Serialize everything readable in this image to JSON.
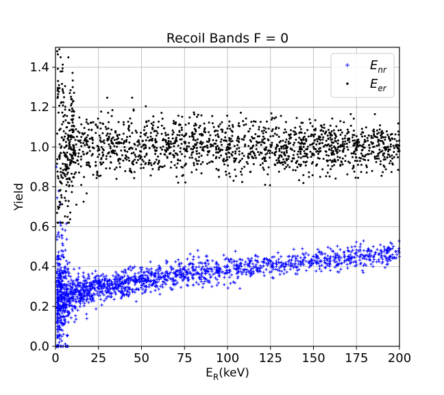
{
  "chart_data": {
    "type": "scatter",
    "title": "Recoil Bands F = 0",
    "xlabel": {
      "main": "E",
      "sub": "R",
      "rest": "(keV)"
    },
    "ylabel": "Yield",
    "xlim": [
      0,
      200
    ],
    "ylim": [
      0.0,
      1.5
    ],
    "xticks": [
      0,
      25,
      50,
      75,
      100,
      125,
      150,
      175,
      200
    ],
    "yticks": [
      0.0,
      0.2,
      0.4,
      0.6,
      0.8,
      1.0,
      1.2,
      1.4
    ],
    "ytick_labels": [
      "0.0",
      "0.2",
      "0.4",
      "0.6",
      "0.8",
      "1.0",
      "1.2",
      "1.4"
    ],
    "grid": true,
    "legend_position": "top-right",
    "series": [
      {
        "name": {
          "main": "E",
          "sub": "nr"
        },
        "color": "#0000ff",
        "marker": "plus",
        "model": "nuclear-recoil band: mean rises from ~0.22 near 1 keV to ~0.46 at 200 keV; wide spread (0.0–0.9) below 10 keV",
        "points": [
          [
            0.5,
            0.9
          ],
          [
            0.8,
            0.55
          ],
          [
            1.0,
            0.12
          ],
          [
            1.2,
            0.45
          ],
          [
            1.5,
            0.05
          ],
          [
            1.8,
            0.78
          ],
          [
            2.0,
            0.3
          ],
          [
            2.2,
            0.02
          ],
          [
            2.5,
            0.62
          ],
          [
            3.0,
            0.2
          ],
          [
            3.5,
            0.48
          ],
          [
            4.0,
            0.08
          ],
          [
            5.0,
            0.38
          ],
          [
            6.0,
            0.15
          ],
          [
            8.0,
            0.42
          ],
          [
            10,
            0.27
          ],
          [
            12,
            0.33
          ],
          [
            15,
            0.24
          ],
          [
            20,
            0.3
          ],
          [
            25,
            0.29
          ],
          [
            30,
            0.31
          ],
          [
            40,
            0.33
          ],
          [
            50,
            0.34
          ],
          [
            60,
            0.35
          ],
          [
            70,
            0.36
          ],
          [
            80,
            0.38
          ],
          [
            90,
            0.39
          ],
          [
            100,
            0.4
          ],
          [
            110,
            0.41
          ],
          [
            125,
            0.43
          ],
          [
            140,
            0.44
          ],
          [
            150,
            0.45
          ],
          [
            160,
            0.45
          ],
          [
            170,
            0.48
          ],
          [
            185,
            0.45
          ],
          [
            196,
            0.46
          ],
          [
            200,
            0.45
          ]
        ]
      },
      {
        "name": {
          "main": "E",
          "sub": "er"
        },
        "color": "#000000",
        "marker": "dot",
        "model": "electron-recoil band: centred on 1.0 with spread ~±0.08; large scatter (0.6–1.48) below 10 keV",
        "points": [
          [
            1.0,
            1.48
          ],
          [
            1.5,
            0.7
          ],
          [
            2.0,
            1.31
          ],
          [
            2.5,
            0.78
          ],
          [
            3.0,
            1.45
          ],
          [
            4.0,
            1.38
          ],
          [
            5.0,
            1.25
          ],
          [
            6.0,
            0.95
          ],
          [
            7.0,
            0.65
          ],
          [
            8.0,
            1.12
          ],
          [
            10,
            1.3
          ],
          [
            15,
            1.05
          ],
          [
            20,
            0.98
          ],
          [
            25,
            1.0
          ],
          [
            50,
            1.0
          ],
          [
            75,
            0.99
          ],
          [
            100,
            1.0
          ],
          [
            125,
            1.01
          ],
          [
            150,
            1.0
          ],
          [
            175,
            1.0
          ],
          [
            200,
            0.98
          ]
        ]
      }
    ]
  }
}
